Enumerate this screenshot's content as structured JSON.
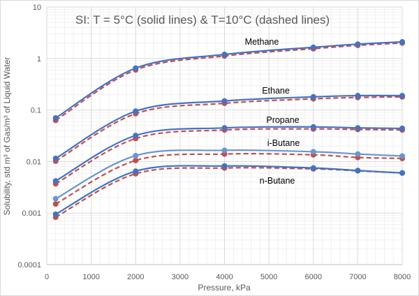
{
  "chart_data": {
    "type": "line",
    "title": "SI: T = 5°C (solid lines) & T=10°C (dashed lines)",
    "xlabel": "Pressure, kPa",
    "ylabel": "Solubility, std  m³ of Gas/m³ of Liquid Water",
    "xlim": [
      0,
      8000
    ],
    "ylim": [
      0.0001,
      10
    ],
    "yscale": "log",
    "grid": true,
    "x_ticks": [
      "0",
      "1000",
      "2000",
      "3000",
      "4000",
      "5000",
      "6000",
      "7000",
      "8000"
    ],
    "y_ticks": [
      "0.0001",
      "0.001",
      "0.01",
      "0.1",
      "1",
      "10"
    ],
    "x": [
      200,
      2000,
      4000,
      6000,
      7000,
      8000
    ],
    "series": [
      {
        "name": "Methane",
        "label": "Methane",
        "temperature": "5°C",
        "style": "solid",
        "color": "#4472C4",
        "values": [
          0.07,
          0.65,
          1.2,
          1.65,
          1.9,
          2.1
        ]
      },
      {
        "name": "Methane 10C",
        "temperature": "10°C",
        "style": "dashed",
        "color": "#C0504D",
        "values": [
          0.063,
          0.6,
          1.12,
          1.55,
          1.8,
          2.0
        ]
      },
      {
        "name": "Ethane",
        "label": "Ethane",
        "temperature": "5°C",
        "style": "solid",
        "color": "#4472C4",
        "values": [
          0.0115,
          0.095,
          0.15,
          0.18,
          0.19,
          0.19
        ]
      },
      {
        "name": "Ethane 10C",
        "temperature": "10°C",
        "style": "dashed",
        "color": "#C0504D",
        "values": [
          0.0102,
          0.085,
          0.135,
          0.165,
          0.175,
          0.18
        ]
      },
      {
        "name": "Propane",
        "label": "Propane",
        "temperature": "5°C",
        "style": "solid",
        "color": "#4472C4",
        "values": [
          0.0042,
          0.032,
          0.045,
          0.047,
          0.045,
          0.044
        ]
      },
      {
        "name": "Propane 10C",
        "temperature": "10°C",
        "style": "dashed",
        "color": "#C0504D",
        "values": [
          0.0037,
          0.028,
          0.041,
          0.043,
          0.042,
          0.041
        ]
      },
      {
        "name": "i-Butane",
        "label": "i-Butane",
        "temperature": "5°C",
        "style": "solid",
        "color": "#6A95D1",
        "values": [
          0.0019,
          0.013,
          0.0165,
          0.0155,
          0.014,
          0.0128
        ]
      },
      {
        "name": "i-Butane 10C",
        "temperature": "10°C",
        "style": "dashed",
        "color": "#C0504D",
        "values": [
          0.0015,
          0.0105,
          0.014,
          0.0135,
          0.012,
          0.0115
        ]
      },
      {
        "name": "n-Butane",
        "label": "n-Butane",
        "temperature": "5°C",
        "style": "solid",
        "color": "#3E74C2",
        "values": [
          0.00095,
          0.0065,
          0.0082,
          0.0075,
          0.0067,
          0.006
        ]
      },
      {
        "name": "n-Butane 10C",
        "temperature": "10°C",
        "style": "dashed",
        "color": "#C0504D",
        "values": [
          0.00083,
          0.0058,
          0.0075,
          0.0072,
          0.0066,
          0.006
        ]
      }
    ]
  }
}
